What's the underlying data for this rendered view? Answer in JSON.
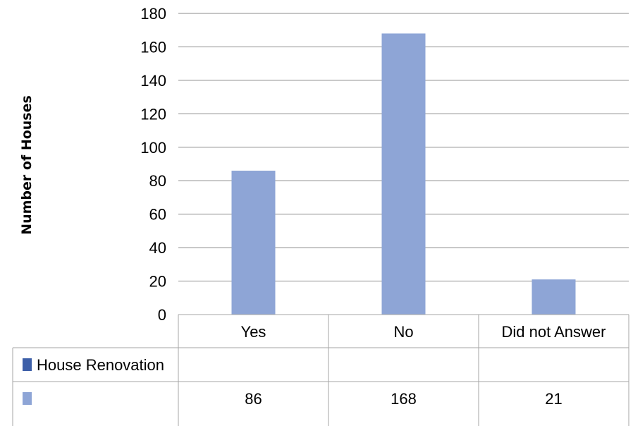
{
  "chart_data": {
    "type": "bar",
    "title": "",
    "xlabel": "",
    "ylabel": "Number of Houses",
    "ylim": [
      0,
      180
    ],
    "yticks": [
      "0",
      "20",
      "40",
      "60",
      "80",
      "100",
      "120",
      "140",
      "160",
      "180"
    ],
    "grid": true,
    "categories": [
      "Yes",
      "No",
      "Did not Answer"
    ],
    "series": [
      {
        "name": "",
        "values": [
          86,
          168,
          21
        ],
        "color": "#8ea5d6"
      }
    ],
    "data_table": {
      "rows": [
        {
          "label": "House Renovation",
          "swatch_color": "#3d5fa8",
          "cells": [
            "",
            "",
            ""
          ]
        },
        {
          "label": "",
          "swatch_color": "#8ea5d6",
          "cells": [
            "86",
            "168",
            "21"
          ]
        }
      ]
    },
    "colors": {
      "bar": "#8ea5d6",
      "legend_dark": "#3d5fa8",
      "grid": "#8c8c8c",
      "table_border": "#a6a6a6"
    }
  }
}
